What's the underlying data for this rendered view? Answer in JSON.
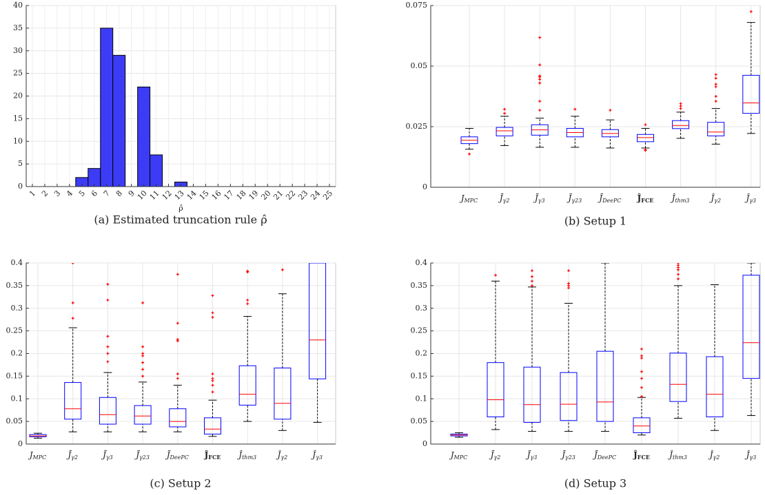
{
  "chart_data": [
    {
      "type": "bar",
      "categories": [
        "1",
        "2",
        "3",
        "4",
        "5",
        "6",
        "7",
        "8",
        "9",
        "10",
        "11",
        "12",
        "13",
        "14",
        "15",
        "16",
        "17",
        "18",
        "19",
        "20",
        "21",
        "22",
        "23",
        "24",
        "25"
      ],
      "values": [
        null,
        null,
        null,
        null,
        2,
        4,
        35,
        29,
        0,
        22,
        7,
        0,
        1,
        null,
        null,
        null,
        null,
        null,
        null,
        null,
        null,
        null,
        null,
        null,
        null
      ],
      "color": "#3c3cf6",
      "ylim": [
        0,
        40
      ],
      "yticks": [
        0,
        5,
        10,
        15,
        20,
        25,
        30,
        35,
        40
      ],
      "grid": true,
      "xlabel": "ρ̂",
      "caption": "(a) Estimated truncation rule ρ̂"
    },
    {
      "type": "box",
      "caption": "(b) Setup 1",
      "categories": [
        {
          "symbol": "J",
          "sub": "MPC"
        },
        {
          "symbol": "J̄",
          "sub": "γ2"
        },
        {
          "symbol": "J̄",
          "sub": "γ3"
        },
        {
          "symbol": "J̄",
          "sub": "γ23"
        },
        {
          "symbol": "J̄",
          "sub": "DeePC"
        },
        {
          "symbol": "Ĵ",
          "sub": "FCE",
          "bold": true
        },
        {
          "symbol": "Ĵ",
          "sub": "thm3"
        },
        {
          "symbol": "Ĵ",
          "sub": "γ2"
        },
        {
          "symbol": "Ĵ",
          "sub": "γ3"
        }
      ],
      "boxes": [
        {
          "whislo": 0.0157,
          "q1": 0.018,
          "med": 0.0194,
          "q3": 0.0208,
          "whishi": 0.0243,
          "fliers": [
            0.0137
          ]
        },
        {
          "whislo": 0.0172,
          "q1": 0.0212,
          "med": 0.0233,
          "q3": 0.0247,
          "whishi": 0.0293,
          "fliers": [
            0.0305,
            0.0322
          ]
        },
        {
          "whislo": 0.0165,
          "q1": 0.0215,
          "med": 0.0237,
          "q3": 0.0258,
          "whishi": 0.0285,
          "fliers": [
            0.0318,
            0.0355,
            0.043,
            0.0445,
            0.0455,
            0.046,
            0.0505,
            0.0618
          ]
        },
        {
          "whislo": 0.0165,
          "q1": 0.0208,
          "med": 0.0226,
          "q3": 0.0243,
          "whishi": 0.0293,
          "fliers": [
            0.0322
          ]
        },
        {
          "whislo": 0.0162,
          "q1": 0.0208,
          "med": 0.0222,
          "q3": 0.0238,
          "whishi": 0.0278,
          "fliers": [
            0.0318
          ]
        },
        {
          "whislo": 0.0162,
          "q1": 0.0188,
          "med": 0.0205,
          "q3": 0.0218,
          "whishi": 0.0243,
          "fliers": [
            0.0152,
            0.0155,
            0.0258
          ]
        },
        {
          "whislo": 0.0202,
          "q1": 0.0242,
          "med": 0.0255,
          "q3": 0.0275,
          "whishi": 0.031,
          "fliers": [
            0.0325,
            0.0335,
            0.0345
          ]
        },
        {
          "whislo": 0.0178,
          "q1": 0.0212,
          "med": 0.0228,
          "q3": 0.0268,
          "whishi": 0.0325,
          "fliers": [
            0.0355,
            0.0375,
            0.0415,
            0.0425,
            0.045,
            0.0465
          ]
        },
        {
          "whislo": 0.0222,
          "q1": 0.0305,
          "med": 0.0348,
          "q3": 0.0462,
          "whishi": 0.068,
          "fliers": [
            0.0725
          ]
        }
      ],
      "ylim": [
        0,
        0.075
      ],
      "yticks": [
        0,
        0.025,
        0.05,
        0.075
      ],
      "grid": true,
      "box_color": "#0000ff",
      "median_color": "#ff0000",
      "flier_color": "#ff0000"
    },
    {
      "type": "box",
      "caption": "(c) Setup 2",
      "categories": [
        {
          "symbol": "J",
          "sub": "MPC"
        },
        {
          "symbol": "J̄",
          "sub": "γ2"
        },
        {
          "symbol": "J̄",
          "sub": "γ3"
        },
        {
          "symbol": "J̄",
          "sub": "γ23"
        },
        {
          "symbol": "J̄",
          "sub": "DeePC"
        },
        {
          "symbol": "Ĵ",
          "sub": "FCE",
          "bold": true
        },
        {
          "symbol": "Ĵ",
          "sub": "thm3"
        },
        {
          "symbol": "Ĵ",
          "sub": "γ2"
        },
        {
          "symbol": "Ĵ",
          "sub": "γ3"
        }
      ],
      "boxes": [
        {
          "whislo": 0.013,
          "q1": 0.016,
          "med": 0.018,
          "q3": 0.021,
          "whishi": 0.024,
          "fliers": []
        },
        {
          "whislo": 0.027,
          "q1": 0.055,
          "med": 0.078,
          "q3": 0.136,
          "whishi": 0.257,
          "fliers": [
            0.278,
            0.312,
            0.4
          ]
        },
        {
          "whislo": 0.027,
          "q1": 0.044,
          "med": 0.065,
          "q3": 0.103,
          "whishi": 0.158,
          "fliers": [
            0.182,
            0.2,
            0.215,
            0.238,
            0.318,
            0.353
          ]
        },
        {
          "whislo": 0.027,
          "q1": 0.044,
          "med": 0.062,
          "q3": 0.085,
          "whishi": 0.137,
          "fliers": [
            0.15,
            0.165,
            0.18,
            0.195,
            0.2,
            0.215,
            0.312
          ]
        },
        {
          "whislo": 0.027,
          "q1": 0.038,
          "med": 0.05,
          "q3": 0.078,
          "whishi": 0.13,
          "fliers": [
            0.145,
            0.155,
            0.228,
            0.231,
            0.267,
            0.375
          ]
        },
        {
          "whislo": 0.017,
          "q1": 0.022,
          "med": 0.033,
          "q3": 0.058,
          "whishi": 0.097,
          "fliers": [
            0.115,
            0.13,
            0.14,
            0.145,
            0.155,
            0.28,
            0.29,
            0.328
          ]
        },
        {
          "whislo": 0.05,
          "q1": 0.086,
          "med": 0.11,
          "q3": 0.173,
          "whishi": 0.282,
          "fliers": [
            0.31,
            0.318,
            0.38,
            0.382
          ]
        },
        {
          "whislo": 0.03,
          "q1": 0.055,
          "med": 0.09,
          "q3": 0.168,
          "whishi": 0.332,
          "fliers": [
            0.385
          ]
        },
        {
          "whislo": 0.048,
          "q1": 0.144,
          "med": 0.23,
          "q3": 0.4,
          "whishi": 0.4,
          "fliers": []
        }
      ],
      "ylim": [
        0,
        0.4
      ],
      "yticks": [
        0,
        0.05,
        0.1,
        0.15,
        0.2,
        0.25,
        0.3,
        0.35,
        0.4
      ],
      "grid": true,
      "box_color": "#0000ff",
      "median_color": "#ff0000",
      "flier_color": "#ff0000"
    },
    {
      "type": "box",
      "caption": "(d) Setup 3",
      "categories": [
        {
          "symbol": "J",
          "sub": "MPC"
        },
        {
          "symbol": "J̄",
          "sub": "γ2"
        },
        {
          "symbol": "J̄",
          "sub": "γ3"
        },
        {
          "symbol": "J̄",
          "sub": "γ23"
        },
        {
          "symbol": "J̄",
          "sub": "DeePC"
        },
        {
          "symbol": "Ĵ",
          "sub": "FCE",
          "bold": true
        },
        {
          "symbol": "Ĵ",
          "sub": "thm3"
        },
        {
          "symbol": "Ĵ",
          "sub": "γ2"
        },
        {
          "symbol": "Ĵ",
          "sub": "γ3"
        }
      ],
      "boxes": [
        {
          "whislo": 0.015,
          "q1": 0.018,
          "med": 0.02,
          "q3": 0.022,
          "whishi": 0.025,
          "fliers": []
        },
        {
          "whislo": 0.032,
          "q1": 0.06,
          "med": 0.098,
          "q3": 0.18,
          "whishi": 0.36,
          "fliers": [
            0.373
          ]
        },
        {
          "whislo": 0.028,
          "q1": 0.048,
          "med": 0.087,
          "q3": 0.17,
          "whishi": 0.347,
          "fliers": [
            0.35,
            0.36,
            0.37,
            0.383
          ]
        },
        {
          "whislo": 0.028,
          "q1": 0.052,
          "med": 0.088,
          "q3": 0.158,
          "whishi": 0.311,
          "fliers": [
            0.345,
            0.35,
            0.355,
            0.383
          ]
        },
        {
          "whislo": 0.028,
          "q1": 0.05,
          "med": 0.093,
          "q3": 0.205,
          "whishi": 0.4,
          "fliers": []
        },
        {
          "whislo": 0.02,
          "q1": 0.025,
          "med": 0.04,
          "q3": 0.058,
          "whishi": 0.103,
          "fliers": [
            0.105,
            0.125,
            0.145,
            0.16,
            0.19,
            0.195,
            0.21
          ]
        },
        {
          "whislo": 0.057,
          "q1": 0.094,
          "med": 0.132,
          "q3": 0.201,
          "whishi": 0.35,
          "fliers": [
            0.365,
            0.375,
            0.385,
            0.39,
            0.395,
            0.4
          ]
        },
        {
          "whislo": 0.03,
          "q1": 0.06,
          "med": 0.11,
          "q3": 0.193,
          "whishi": 0.352,
          "fliers": []
        },
        {
          "whislo": 0.063,
          "q1": 0.145,
          "med": 0.224,
          "q3": 0.373,
          "whishi": 0.4,
          "fliers": []
        }
      ],
      "ylim": [
        0,
        0.4
      ],
      "yticks": [
        0,
        0.05,
        0.1,
        0.15,
        0.2,
        0.25,
        0.3,
        0.35,
        0.4
      ],
      "grid": true,
      "box_color": "#0000ff",
      "median_color": "#ff0000",
      "flier_color": "#ff0000"
    }
  ]
}
